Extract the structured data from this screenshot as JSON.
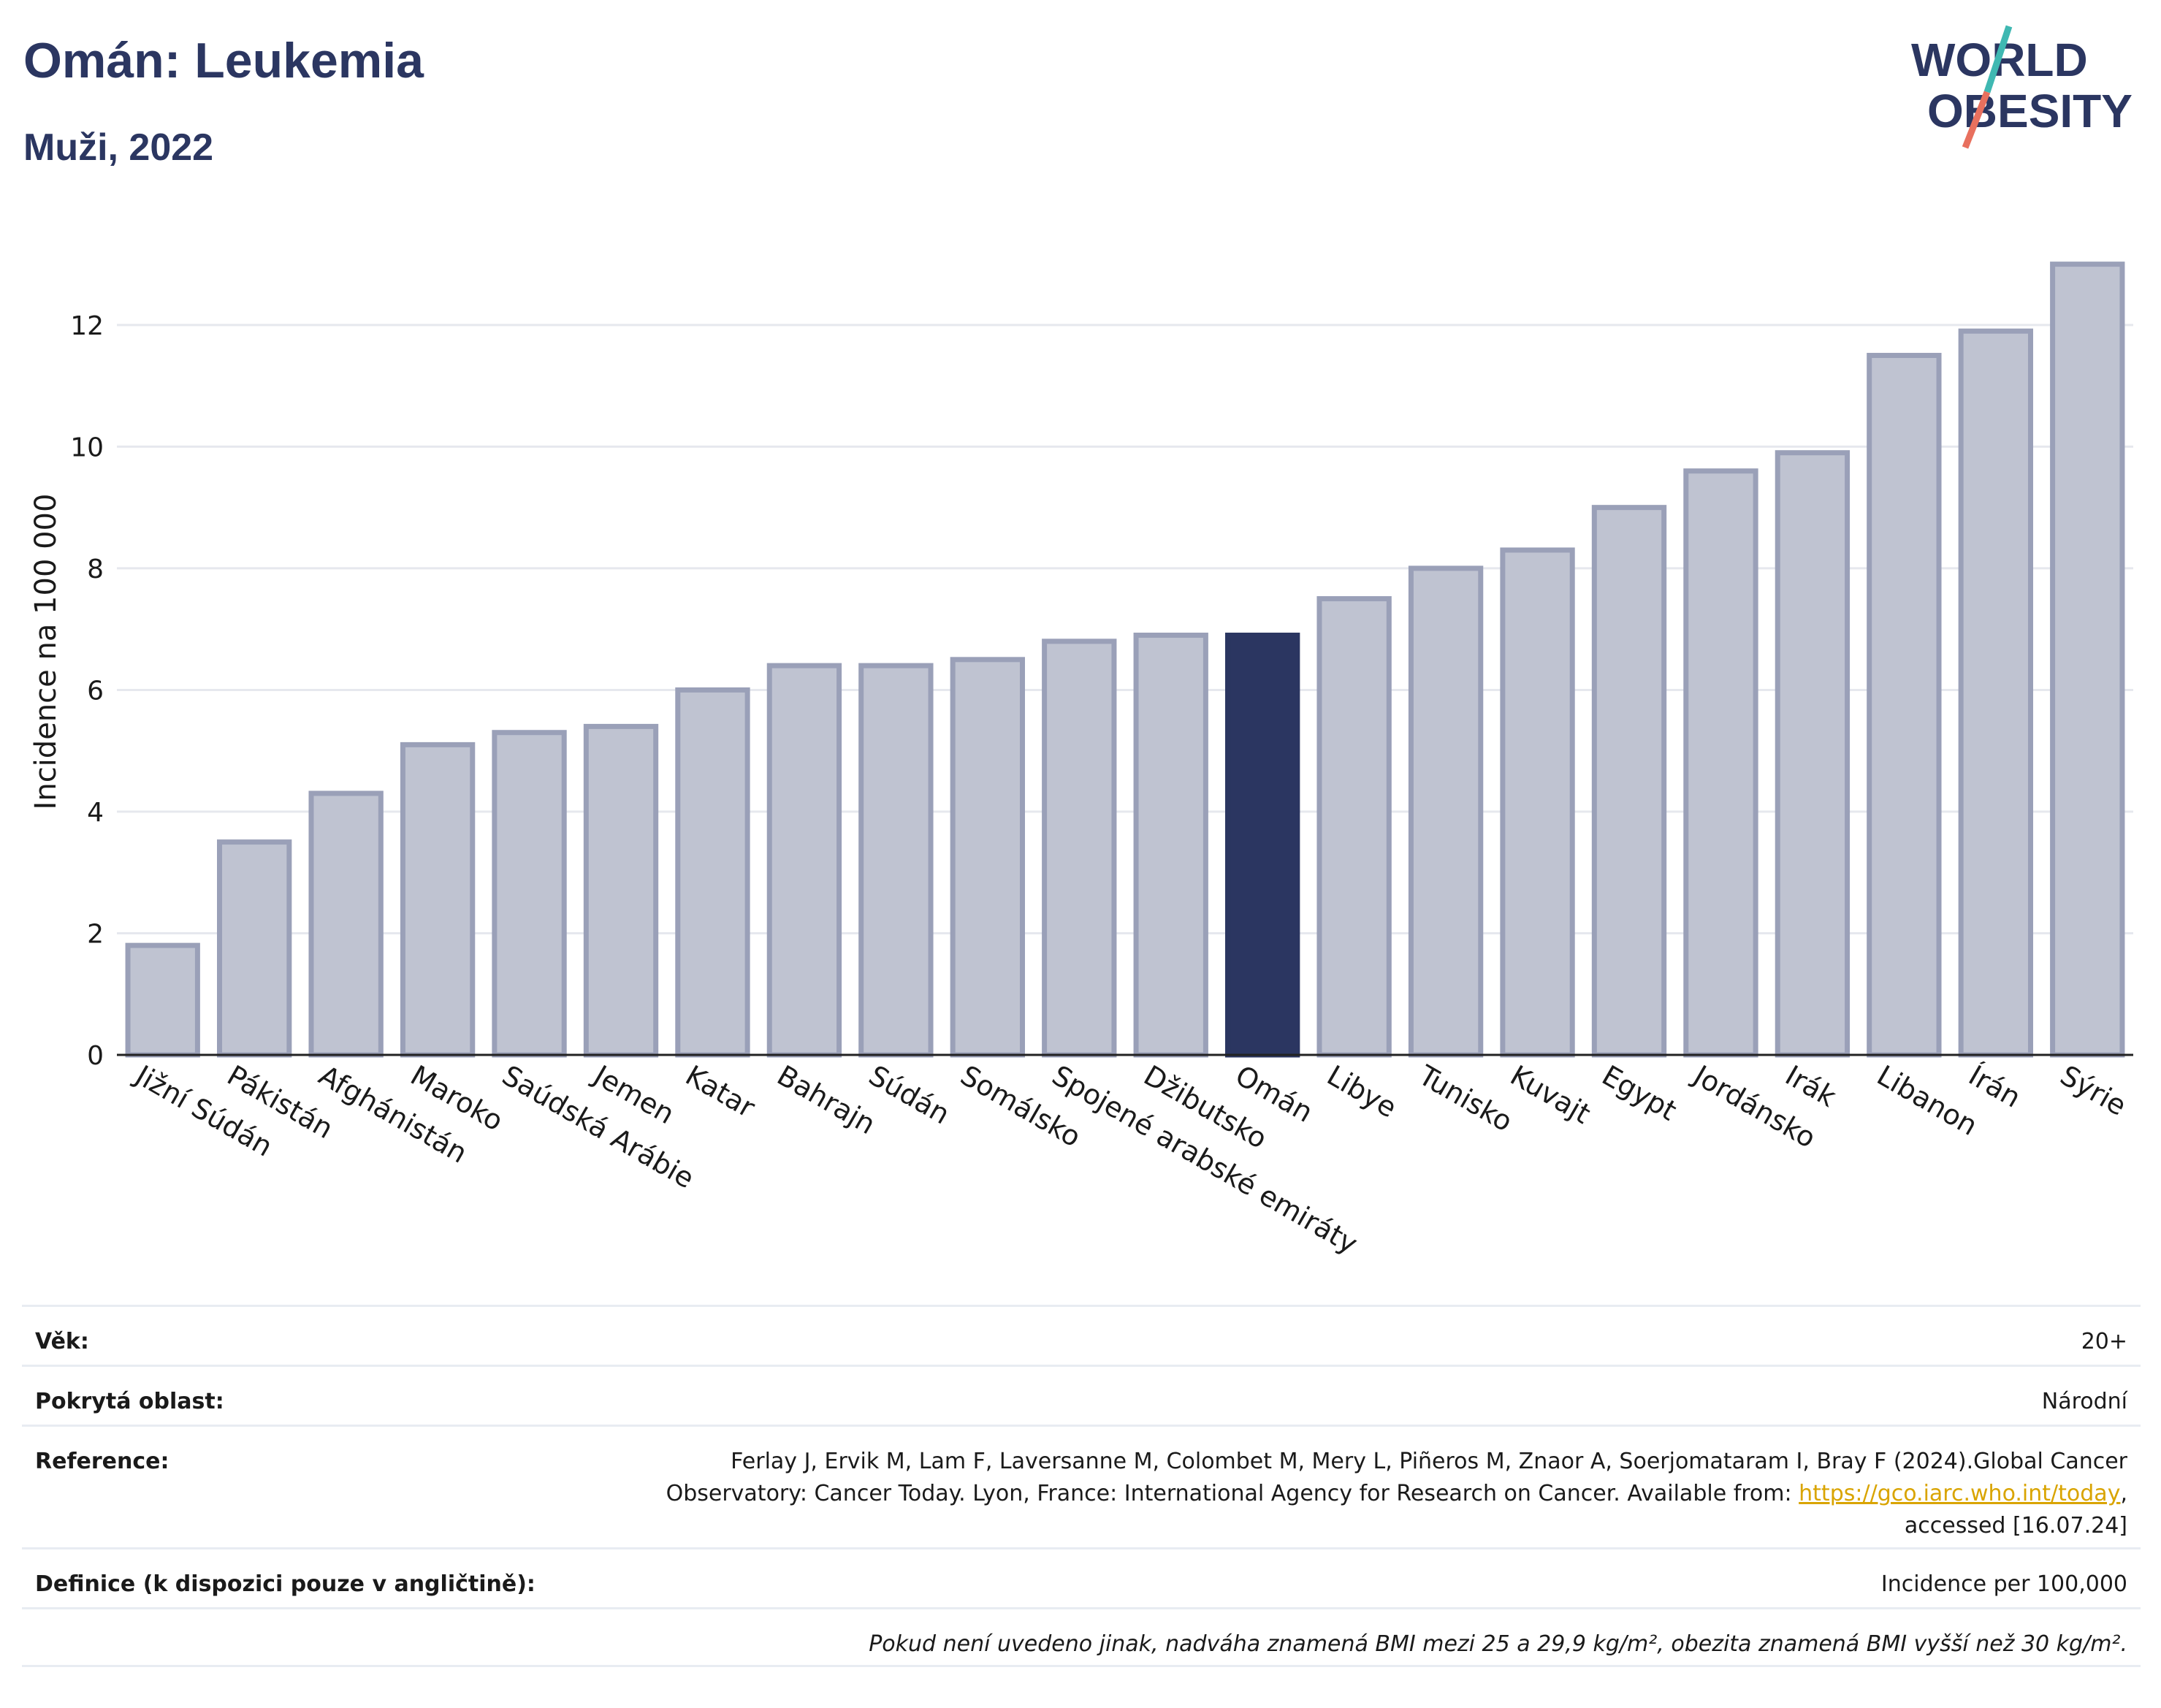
{
  "header": {
    "title": "Omán: Leukemia",
    "subtitle": "Muži, 2022",
    "logo_line1": "WORLD",
    "logo_line2": "OBESITY"
  },
  "chart_data": {
    "type": "bar",
    "ylabel": "Incidence na 100 000",
    "xlabel": "",
    "ylim": [
      0,
      13.5
    ],
    "yticks": [
      0,
      2,
      4,
      6,
      8,
      10,
      12
    ],
    "grid": true,
    "highlight_category": "Omán",
    "colors": {
      "bar": "#bfc3d1",
      "bar_border": "#9aa0b8",
      "highlight": "#2b3661",
      "grid": "#e6e8ee"
    },
    "categories": [
      "Jižní Súdán",
      "Pákistán",
      "Afghánistán",
      "Maroko",
      "Saúdská Arábie",
      "Jemen",
      "Katar",
      "Bahrajn",
      "Súdán",
      "Somálsko",
      "Spojené arabské emiráty",
      "Džibutsko",
      "Omán",
      "Libye",
      "Tunisko",
      "Kuvajt",
      "Egypt",
      "Jordánsko",
      "Irák",
      "Libanon",
      "Írán",
      "Sýrie"
    ],
    "values": [
      1.8,
      3.5,
      4.3,
      5.1,
      5.3,
      5.4,
      6.0,
      6.4,
      6.4,
      6.5,
      6.8,
      6.9,
      6.9,
      7.5,
      8.0,
      8.3,
      9.0,
      9.6,
      9.9,
      11.5,
      11.9,
      13.0
    ]
  },
  "meta": {
    "age_label": "Věk:",
    "age_value": "20+",
    "area_label": "Pokrytá oblast:",
    "area_value": "Národní",
    "ref_label": "Reference:",
    "ref_text_1": "Ferlay J, Ervik M, Lam F, Laversanne M, Colombet M, Mery L, Piñeros M, Znaor A, Soerjomataram I, Bray F (2024).Global Cancer",
    "ref_text_2": "Observatory: Cancer Today. Lyon, France: International Agency for Research on Cancer. Available from: ",
    "ref_link": "https://gco.iarc.who.int/today",
    "ref_text_3": ",",
    "ref_text_4": "accessed [16.07.24]",
    "def_label": "Definice (k dispozici pouze v angličtině):",
    "def_value": "Incidence per 100,000",
    "note": "Pokud není uvedeno jinak, nadváha znamená BMI mezi 25 a 29,9 kg/m², obezita znamená BMI vyšší než 30 kg/m²."
  }
}
